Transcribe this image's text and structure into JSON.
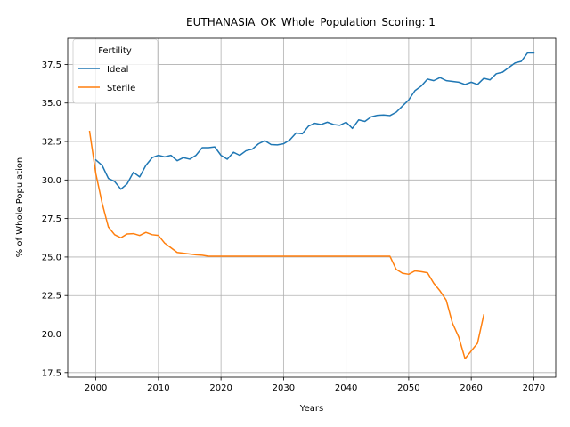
{
  "chart_data": {
    "type": "line",
    "title": "EUTHANASIA_OK_Whole_Population_Scoring: 1",
    "xlabel": "Years",
    "ylabel": "% of Whole Population",
    "xlim": [
      1995.5,
      2073.5
    ],
    "ylim": [
      17.2,
      39.2
    ],
    "xticks": [
      2000,
      2010,
      2020,
      2030,
      2040,
      2050,
      2060,
      2070
    ],
    "yticks": [
      17.5,
      20.0,
      22.5,
      25.0,
      27.5,
      30.0,
      32.5,
      35.0,
      37.5
    ],
    "ytick_labels": [
      "17.5",
      "20.0",
      "22.5",
      "25.0",
      "27.5",
      "30.0",
      "32.5",
      "35.0",
      "37.5"
    ],
    "grid": true,
    "legend": {
      "title": "Fertility",
      "position": "upper-left"
    },
    "series": [
      {
        "name": "Ideal",
        "color": "#1f77b4",
        "x": [
          2000,
          2001,
          2002,
          2003,
          2004,
          2005,
          2006,
          2007,
          2008,
          2009,
          2010,
          2011,
          2012,
          2013,
          2014,
          2015,
          2016,
          2017,
          2018,
          2019,
          2020,
          2021,
          2022,
          2023,
          2024,
          2025,
          2026,
          2027,
          2028,
          2029,
          2030,
          2031,
          2032,
          2033,
          2034,
          2035,
          2036,
          2037,
          2038,
          2039,
          2040,
          2041,
          2042,
          2043,
          2044,
          2045,
          2046,
          2047,
          2048,
          2049,
          2050,
          2051,
          2052,
          2053,
          2054,
          2055,
          2056,
          2057,
          2058,
          2059,
          2060,
          2061,
          2062,
          2063,
          2064,
          2065,
          2066,
          2067,
          2068,
          2069,
          2070
        ],
        "y": [
          31.3,
          30.95,
          30.1,
          29.9,
          29.4,
          29.75,
          30.5,
          30.2,
          30.95,
          31.45,
          31.6,
          31.5,
          31.6,
          31.25,
          31.45,
          31.35,
          31.6,
          32.1,
          32.1,
          32.15,
          31.6,
          31.35,
          31.8,
          31.6,
          31.9,
          32.0,
          32.35,
          32.55,
          32.3,
          32.28,
          32.35,
          32.6,
          33.05,
          33.0,
          33.5,
          33.68,
          33.6,
          33.75,
          33.6,
          33.55,
          33.75,
          33.35,
          33.9,
          33.8,
          34.1,
          34.2,
          34.22,
          34.18,
          34.4,
          34.8,
          35.2,
          35.8,
          36.1,
          36.55,
          36.45,
          36.65,
          36.45,
          36.4,
          36.35,
          36.2,
          36.35,
          36.2,
          36.6,
          36.5,
          36.9,
          37.0,
          37.3,
          37.6,
          37.7,
          38.25,
          38.25
        ]
      },
      {
        "name": "Sterile",
        "color": "#ff7f0e",
        "x": [
          1999,
          2000,
          2001,
          2002,
          2003,
          2004,
          2005,
          2006,
          2007,
          2008,
          2009,
          2010,
          2011,
          2012,
          2013,
          2014,
          2015,
          2016,
          2017,
          2018,
          2019,
          2020,
          2025,
          2030,
          2035,
          2040,
          2045,
          2047,
          2048,
          2049,
          2050,
          2051,
          2052,
          2053,
          2054,
          2055,
          2056,
          2057,
          2058,
          2059,
          2060,
          2061,
          2062
        ],
        "y": [
          33.15,
          30.4,
          28.5,
          26.95,
          26.45,
          26.25,
          26.5,
          26.52,
          26.4,
          26.6,
          26.45,
          26.4,
          25.9,
          25.6,
          25.3,
          25.25,
          25.2,
          25.15,
          25.12,
          25.05,
          25.05,
          25.05,
          25.05,
          25.05,
          25.05,
          25.05,
          25.05,
          25.05,
          24.2,
          23.95,
          23.88,
          24.1,
          24.05,
          23.98,
          23.3,
          22.8,
          22.2,
          20.7,
          19.8,
          18.4,
          18.9,
          19.4,
          21.25
        ]
      }
    ]
  }
}
